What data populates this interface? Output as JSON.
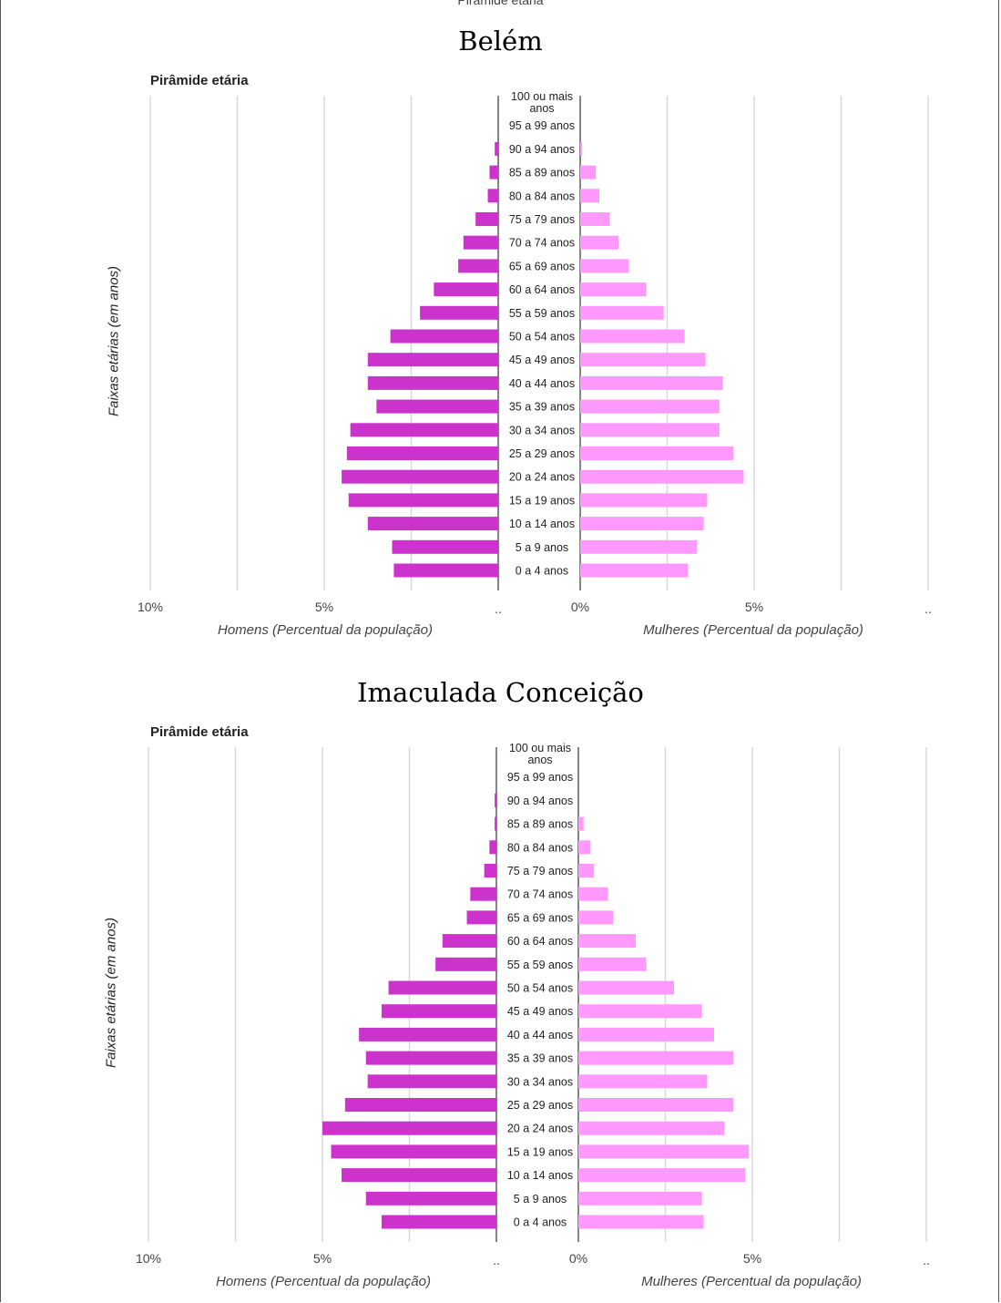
{
  "page": {
    "top_cut_text": "Pirâmide etária"
  },
  "colors": {
    "men": "#cc33cc",
    "women": "#ff99ff",
    "grid": "#d9d9d9",
    "axis": "#333333"
  },
  "chart_data": [
    {
      "type": "bar",
      "panel_title": "Belém",
      "title": "Pirâmide etária",
      "ylabel": "Faixas etárias (em anos)",
      "xlabel_left": "Homens (Percentual da população)",
      "xlabel_right": "Mulheres (Percentual da população)",
      "x_ticks_left": [
        "10%",
        "5%",
        ".."
      ],
      "x_ticks_right": [
        "0%",
        "5%",
        ".."
      ],
      "xlim": [
        0,
        10
      ],
      "categories": [
        "100 ou mais anos",
        "95 a 99 anos",
        "90 a 94 anos",
        "85 a 89 anos",
        "80 a 84 anos",
        "75 a 79 anos",
        "70 a 74 anos",
        "65 a 69 anos",
        "60 a 64 anos",
        "55 a 59 anos",
        "50 a 54 anos",
        "45 a 49 anos",
        "40 a 44 anos",
        "35 a 39 anos",
        "30 a 34 anos",
        "25 a 29 anos",
        "20 a 24 anos",
        "15 a 19 anos",
        "10 a 14 anos",
        "5 a 9 anos",
        "0 a 4 anos"
      ],
      "series": [
        {
          "name": "Homens",
          "values": [
            0,
            0,
            0.1,
            0.25,
            0.3,
            0.65,
            1.0,
            1.15,
            1.85,
            2.25,
            3.1,
            3.75,
            3.75,
            3.5,
            4.25,
            4.35,
            4.5,
            4.3,
            3.75,
            3.05,
            3.0
          ]
        },
        {
          "name": "Mulheres",
          "values": [
            0,
            0,
            0.05,
            0.45,
            0.55,
            0.85,
            1.1,
            1.4,
            1.9,
            2.4,
            3.0,
            3.6,
            4.1,
            4.0,
            4.0,
            4.4,
            4.7,
            3.65,
            3.55,
            3.35,
            3.1
          ]
        }
      ]
    },
    {
      "type": "bar",
      "panel_title": "Imaculada Conceição",
      "title": "Pirâmide etária",
      "ylabel": "Faixas etárias (em anos)",
      "xlabel_left": "Homens (Percentual da população)",
      "xlabel_right": "Mulheres (Percentual da população)",
      "x_ticks_left": [
        "10%",
        "5%",
        ".."
      ],
      "x_ticks_right": [
        "0%",
        "5%",
        ".."
      ],
      "xlim": [
        0,
        10
      ],
      "categories": [
        "100 ou mais anos",
        "95 a 99 anos",
        "90 a 94 anos",
        "85 a 89 anos",
        "80 a 84 anos",
        "75 a 79 anos",
        "70 a 74 anos",
        "65 a 69 anos",
        "60 a 64 anos",
        "55 a 59 anos",
        "50 a 54 anos",
        "45 a 49 anos",
        "40 a 44 anos",
        "35 a 39 anos",
        "30 a 34 anos",
        "25 a 29 anos",
        "20 a 24 anos",
        "15 a 19 anos",
        "10 a 14 anos",
        "5 a 9 anos",
        "0 a 4 anos"
      ],
      "series": [
        {
          "name": "Homens",
          "values": [
            0,
            0,
            0.05,
            0.05,
            0.2,
            0.35,
            0.75,
            0.85,
            1.55,
            1.75,
            3.1,
            3.3,
            3.95,
            3.75,
            3.7,
            4.35,
            5.0,
            4.75,
            4.45,
            3.75,
            3.3
          ]
        },
        {
          "name": "Mulheres",
          "values": [
            0,
            0,
            0,
            0.15,
            0.35,
            0.45,
            0.85,
            1.0,
            1.65,
            1.95,
            2.75,
            3.55,
            3.9,
            4.45,
            3.7,
            4.45,
            4.2,
            4.9,
            4.8,
            3.55,
            3.6
          ]
        }
      ]
    }
  ]
}
